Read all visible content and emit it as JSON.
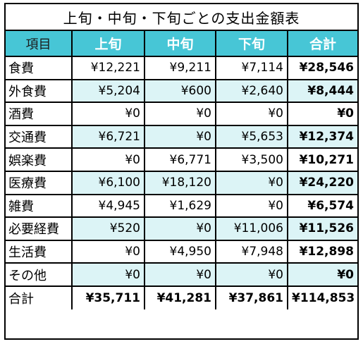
{
  "title": "上旬・中旬・下旬ごとの支出金額表",
  "headers": [
    "項目",
    "上旬",
    "中旬",
    "下旬",
    "合計"
  ],
  "rows": [
    {
      "item": "食費",
      "early": "¥12,221",
      "mid": "¥9,211",
      "late": "¥7,114",
      "total": "¥28,546"
    },
    {
      "item": "外食費",
      "early": "¥5,204",
      "mid": "¥600",
      "late": "¥2,640",
      "total": "¥8,444"
    },
    {
      "item": "酒費",
      "early": "¥0",
      "mid": "¥0",
      "late": "¥0",
      "total": "¥0"
    },
    {
      "item": "交通費",
      "early": "¥6,721",
      "mid": "¥0",
      "late": "¥5,653",
      "total": "¥12,374"
    },
    {
      "item": "娯楽費",
      "early": "¥0",
      "mid": "¥6,771",
      "late": "¥3,500",
      "total": "¥10,271"
    },
    {
      "item": "医療費",
      "early": "¥6,100",
      "mid": "¥18,120",
      "late": "¥0",
      "total": "¥24,220"
    },
    {
      "item": "雑費",
      "early": "¥4,945",
      "mid": "¥1,629",
      "late": "¥0",
      "total": "¥6,574"
    },
    {
      "item": "必要経費",
      "early": "¥520",
      "mid": "¥0",
      "late": "¥11,006",
      "total": "¥11,526"
    },
    {
      "item": "生活費",
      "early": "¥0",
      "mid": "¥4,950",
      "late": "¥7,948",
      "total": "¥12,898"
    },
    {
      "item": "その他",
      "early": "¥0",
      "mid": "¥0",
      "late": "¥0",
      "total": "¥0"
    }
  ],
  "grand_total": {
    "item": "合計",
    "early": "¥35,711",
    "mid": "¥41,281",
    "late": "¥37,861",
    "total": "¥114,853"
  },
  "colors": {
    "header_bg": "#47c6d6",
    "alt_row_bg": "#dcf4f6",
    "border": "#000000"
  }
}
